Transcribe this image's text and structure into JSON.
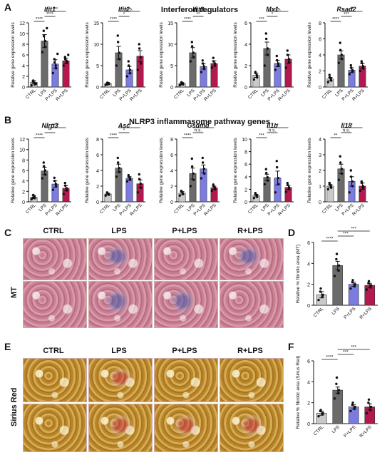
{
  "figure": {
    "panel_A": {
      "letter": "A",
      "title": "Interferon regulators",
      "ylabel": "Relative gene expression levels",
      "categories": [
        "CTRL",
        "LPS",
        "P+LPS",
        "R+LPS"
      ]
    },
    "panel_B": {
      "letter": "B",
      "title": "NLRP3 inflammasome pathway genes",
      "ylabel": "Relative gene expression levels",
      "categories": [
        "CTRL",
        "LPS",
        "P+LPS",
        "R+LPS"
      ]
    },
    "panel_C": {
      "letter": "C",
      "columns": [
        "CTRL",
        "LPS",
        "P+LPS",
        "R+LPS"
      ],
      "row_label": "MT"
    },
    "panel_D": {
      "letter": "D",
      "ylabel": "Relative % fibrotic area (MT)",
      "categories": [
        "CTRL",
        "LPS",
        "P+LPS",
        "R+LPS"
      ]
    },
    "panel_E": {
      "letter": "E",
      "columns": [
        "CTRL",
        "LPS",
        "P+LPS",
        "R+LPS"
      ],
      "row_label": "Sirius Red"
    },
    "panel_F": {
      "letter": "F",
      "ylabel": "Relative % fibrotic area (Sirius Red)",
      "categories": [
        "CTRL",
        "LPS",
        "P+LPS",
        "R+LPS"
      ]
    }
  },
  "colors": {
    "CTRL": "#c9c9c9",
    "LPS": "#6b6b6b",
    "P+LPS": "#7b7be0",
    "R+LPS": "#b5174f"
  },
  "chart_data": [
    {
      "id": "ifit1",
      "panel": "A",
      "type": "bar",
      "title": "Ifit1",
      "categories": [
        "CTRL",
        "LPS",
        "P+LPS",
        "R+LPS"
      ],
      "values": [
        0.9,
        8.6,
        4.3,
        4.9
      ],
      "errors": [
        0.3,
        1.2,
        0.8,
        0.5
      ],
      "ylim": [
        0,
        12
      ],
      "yticks": [
        0,
        2,
        4,
        6,
        8,
        10,
        12
      ],
      "points": [
        [
          0.3,
          0.5,
          0.8,
          1.2,
          1.0,
          0.6
        ],
        [
          6.5,
          7.5,
          8.6,
          9.5,
          10.5,
          11.0
        ],
        [
          2.6,
          3.5,
          4.0,
          4.6,
          5.2,
          6.2
        ],
        [
          4.0,
          4.5,
          4.9,
          5.2,
          5.6,
          6.0
        ]
      ],
      "significance": [
        {
          "a": 0,
          "b": 1,
          "label": "****",
          "level": 1
        },
        {
          "a": 1,
          "b": 2,
          "label": "****",
          "level": 2
        },
        {
          "a": 1,
          "b": 3,
          "label": "***",
          "level": 3
        }
      ]
    },
    {
      "id": "ifit2",
      "panel": "A",
      "type": "bar",
      "title": "Ifit2",
      "categories": [
        "CTRL",
        "LPS",
        "P+LPS",
        "R+LPS"
      ],
      "values": [
        0.8,
        8.0,
        4.0,
        7.2
      ],
      "errors": [
        0.2,
        1.5,
        0.8,
        1.3
      ],
      "ylim": [
        0,
        15
      ],
      "yticks": [
        0,
        5,
        10,
        15
      ],
      "points": [
        [
          0.5,
          0.7,
          0.9,
          1.0,
          0.6
        ],
        [
          5.0,
          6.5,
          8.0,
          10.5,
          12.0
        ],
        [
          2.5,
          3.2,
          4.0,
          5.0,
          6.0
        ],
        [
          4.0,
          5.5,
          7.0,
          9.0,
          10.0
        ]
      ],
      "significance": [
        {
          "a": 0,
          "b": 1,
          "label": "****",
          "level": 1
        },
        {
          "a": 1,
          "b": 2,
          "label": "*",
          "level": 2
        },
        {
          "a": 1,
          "b": 3,
          "label": "n.s.",
          "level": 3
        }
      ]
    },
    {
      "id": "ifit3",
      "panel": "A",
      "type": "bar",
      "title": "Ifit3",
      "categories": [
        "CTRL",
        "LPS",
        "P+LPS",
        "R+LPS"
      ],
      "values": [
        0.8,
        8.0,
        4.8,
        5.5
      ],
      "errors": [
        0.2,
        1.2,
        0.6,
        0.6
      ],
      "ylim": [
        0,
        15
      ],
      "yticks": [
        0,
        5,
        10,
        15
      ],
      "points": [
        [
          0.4,
          0.6,
          0.9,
          1.1,
          0.7
        ],
        [
          6.0,
          7.0,
          8.0,
          9.5,
          10.5
        ],
        [
          3.5,
          4.2,
          4.8,
          5.5,
          6.2
        ],
        [
          4.5,
          5.0,
          5.5,
          6.0,
          6.8
        ]
      ],
      "significance": [
        {
          "a": 0,
          "b": 1,
          "label": "****",
          "level": 1
        },
        {
          "a": 1,
          "b": 2,
          "label": "**",
          "level": 2
        },
        {
          "a": 1,
          "b": 3,
          "label": "*",
          "level": 3
        }
      ]
    },
    {
      "id": "mx1",
      "panel": "A",
      "type": "bar",
      "title": "Mx1",
      "categories": [
        "CTRL",
        "LPS",
        "P+LPS",
        "R+LPS"
      ],
      "values": [
        1.1,
        3.6,
        2.2,
        2.6
      ],
      "errors": [
        0.2,
        0.6,
        0.3,
        0.4
      ],
      "ylim": [
        0,
        6
      ],
      "yticks": [
        0,
        2,
        4,
        6
      ],
      "points": [
        [
          0.7,
          0.9,
          1.1,
          1.3,
          1.4
        ],
        [
          2.0,
          3.0,
          3.6,
          4.5,
          5.0
        ],
        [
          1.6,
          2.0,
          2.2,
          2.5,
          2.9
        ],
        [
          1.8,
          2.3,
          2.6,
          3.0,
          3.4
        ]
      ],
      "significance": [
        {
          "a": 0,
          "b": 1,
          "label": "***",
          "level": 1
        },
        {
          "a": 1,
          "b": 2,
          "label": "*",
          "level": 2
        },
        {
          "a": 1,
          "b": 3,
          "label": "n.s.",
          "level": 3
        }
      ]
    },
    {
      "id": "rsad2",
      "panel": "A",
      "type": "bar",
      "title": "Rsad2",
      "categories": [
        "CTRL",
        "LPS",
        "P+LPS",
        "R+LPS"
      ],
      "values": [
        1.0,
        4.0,
        2.1,
        2.6
      ],
      "errors": [
        0.2,
        0.5,
        0.3,
        0.3
      ],
      "ylim": [
        0,
        8
      ],
      "yticks": [
        0,
        2,
        4,
        6,
        8
      ],
      "points": [
        [
          0.6,
          0.8,
          1.0,
          1.2,
          1.5
        ],
        [
          3.0,
          3.5,
          4.0,
          4.6,
          5.5
        ],
        [
          1.6,
          1.9,
          2.1,
          2.4,
          2.7
        ],
        [
          2.0,
          2.3,
          2.6,
          3.0,
          3.2
        ]
      ],
      "significance": [
        {
          "a": 0,
          "b": 1,
          "label": "****",
          "level": 1
        },
        {
          "a": 1,
          "b": 2,
          "label": "***",
          "level": 2
        },
        {
          "a": 1,
          "b": 3,
          "label": "**",
          "level": 3
        }
      ]
    },
    {
      "id": "nlrp3",
      "panel": "B",
      "type": "bar",
      "title": "Nlrp3",
      "categories": [
        "CTRL",
        "LPS",
        "P+LPS",
        "R+LPS"
      ],
      "values": [
        0.9,
        5.9,
        3.4,
        2.6
      ],
      "errors": [
        0.3,
        0.7,
        0.6,
        0.5
      ],
      "ylim": [
        0,
        12
      ],
      "yticks": [
        0,
        2,
        4,
        6,
        8,
        10,
        12
      ],
      "points": [
        [
          0.5,
          0.7,
          1.0,
          1.3,
          0.8
        ],
        [
          4.5,
          5.2,
          6.0,
          6.8,
          7.5
        ],
        [
          2.3,
          3.0,
          3.4,
          4.0,
          4.6
        ],
        [
          1.5,
          2.2,
          2.6,
          3.1,
          3.6
        ]
      ],
      "significance": [
        {
          "a": 0,
          "b": 1,
          "label": "****",
          "level": 1
        },
        {
          "a": 1,
          "b": 2,
          "label": "**",
          "level": 2
        },
        {
          "a": 1,
          "b": 3,
          "label": "****",
          "level": 3
        }
      ]
    },
    {
      "id": "asc",
      "panel": "B",
      "type": "bar",
      "title": "Asc",
      "categories": [
        "CTRL",
        "LPS",
        "P+LPS",
        "R+LPS"
      ],
      "values": [
        1.0,
        4.3,
        3.0,
        2.3
      ],
      "errors": [
        0.1,
        0.5,
        0.2,
        0.5
      ],
      "ylim": [
        0,
        8
      ],
      "yticks": [
        0,
        2,
        4,
        6,
        8
      ],
      "points": [
        [
          0.8,
          0.9,
          1.0,
          1.1,
          1.2
        ],
        [
          3.2,
          3.8,
          4.3,
          5.0,
          5.6
        ],
        [
          2.6,
          2.8,
          3.0,
          3.2,
          3.4
        ],
        [
          1.2,
          1.8,
          2.3,
          2.9,
          3.5
        ]
      ],
      "significance": [
        {
          "a": 0,
          "b": 1,
          "label": "****",
          "level": 1
        },
        {
          "a": 1,
          "b": 2,
          "label": "*",
          "level": 2
        },
        {
          "a": 1,
          "b": 3,
          "label": "**",
          "level": 3
        }
      ]
    },
    {
      "id": "gsdmd",
      "panel": "B",
      "type": "bar",
      "title": "Gsdmd",
      "categories": [
        "CTRL",
        "LPS",
        "P+LPS",
        "R+LPS"
      ],
      "values": [
        1.1,
        3.6,
        4.2,
        1.8
      ],
      "errors": [
        0.2,
        0.7,
        0.5,
        0.2
      ],
      "ylim": [
        0,
        8
      ],
      "yticks": [
        0,
        2,
        4,
        6,
        8
      ],
      "points": [
        [
          0.8,
          1.0,
          1.1,
          1.3,
          1.4
        ],
        [
          2.0,
          2.8,
          3.6,
          4.5,
          5.5
        ],
        [
          3.0,
          3.6,
          4.2,
          5.0,
          5.6
        ],
        [
          1.4,
          1.6,
          1.8,
          2.0,
          2.2
        ]
      ],
      "significance": [
        {
          "a": 0,
          "b": 1,
          "label": "****",
          "level": 1
        },
        {
          "a": 1,
          "b": 2,
          "label": "n.s.",
          "level": 2
        },
        {
          "a": 1,
          "b": 3,
          "label": "**",
          "level": 3
        }
      ]
    },
    {
      "id": "il1b",
      "panel": "B",
      "type": "bar",
      "title": "Il1b",
      "categories": [
        "CTRL",
        "LPS",
        "P+LPS",
        "R+LPS"
      ],
      "values": [
        1.0,
        3.9,
        3.8,
        2.3
      ],
      "errors": [
        0.2,
        0.5,
        1.1,
        0.3
      ],
      "ylim": [
        0,
        10
      ],
      "yticks": [
        0,
        2,
        4,
        6,
        8,
        10
      ],
      "points": [
        [
          0.6,
          0.8,
          1.0,
          1.2,
          1.4
        ],
        [
          2.8,
          3.4,
          3.9,
          4.6,
          5.2
        ],
        [
          1.5,
          2.8,
          3.8,
          5.5,
          6.5
        ],
        [
          1.6,
          2.0,
          2.3,
          2.7,
          3.0
        ]
      ],
      "significance": [
        {
          "a": 0,
          "b": 1,
          "label": "***",
          "level": 1
        },
        {
          "a": 1,
          "b": 2,
          "label": "n.s.",
          "level": 2
        },
        {
          "a": 1,
          "b": 3,
          "label": "*",
          "level": 3
        }
      ]
    },
    {
      "id": "il18",
      "panel": "B",
      "type": "bar",
      "title": "Il18",
      "categories": [
        "CTRL",
        "LPS",
        "P+LPS",
        "R+LPS"
      ],
      "values": [
        1.0,
        2.1,
        1.3,
        1.0
      ],
      "errors": [
        0.1,
        0.3,
        0.3,
        0.2
      ],
      "ylim": [
        0,
        4
      ],
      "yticks": [
        0,
        1,
        2,
        3,
        4
      ],
      "points": [
        [
          0.8,
          0.9,
          1.0,
          1.1,
          1.2
        ],
        [
          1.4,
          1.8,
          2.1,
          2.5,
          2.9
        ],
        [
          0.6,
          1.0,
          1.3,
          1.6,
          2.0
        ],
        [
          0.7,
          0.9,
          1.0,
          1.2,
          1.3
        ]
      ],
      "significance": [
        {
          "a": 0,
          "b": 1,
          "label": "**",
          "level": 1
        },
        {
          "a": 1,
          "b": 2,
          "label": "n.s.",
          "level": 2
        },
        {
          "a": 1,
          "b": 3,
          "label": "*",
          "level": 3
        }
      ]
    },
    {
      "id": "mt_fibrosis",
      "panel": "D",
      "type": "bar",
      "title": "",
      "categories": [
        "CTRL",
        "LPS",
        "P+LPS",
        "R+LPS"
      ],
      "values": [
        1.0,
        3.8,
        2.0,
        1.9
      ],
      "errors": [
        0.3,
        0.4,
        0.2,
        0.2
      ],
      "ylim": [
        0,
        6
      ],
      "yticks": [
        0,
        2,
        4,
        6
      ],
      "points": [
        [
          0.5,
          0.8,
          1.0,
          1.3,
          1.6
        ],
        [
          2.8,
          3.3,
          3.8,
          4.4,
          4.9
        ],
        [
          1.6,
          1.8,
          2.0,
          2.2,
          2.4
        ],
        [
          1.5,
          1.7,
          1.9,
          2.1,
          2.3
        ]
      ],
      "significance": [
        {
          "a": 0,
          "b": 1,
          "label": "****",
          "level": 1
        },
        {
          "a": 1,
          "b": 2,
          "label": "***",
          "level": 2
        },
        {
          "a": 1,
          "b": 3,
          "label": "***",
          "level": 3
        }
      ]
    },
    {
      "id": "sr_fibrosis",
      "panel": "F",
      "type": "bar",
      "title": "",
      "categories": [
        "CTRL",
        "LPS",
        "P+LPS",
        "R+LPS"
      ],
      "values": [
        1.0,
        3.2,
        1.6,
        1.6
      ],
      "errors": [
        0.2,
        0.3,
        0.2,
        0.3
      ],
      "ylim": [
        0,
        6
      ],
      "yticks": [
        0,
        2,
        4,
        6
      ],
      "points": [
        [
          0.7,
          0.9,
          1.0,
          1.2,
          1.3
        ],
        [
          2.4,
          2.9,
          3.2,
          3.8,
          4.4
        ],
        [
          1.2,
          1.4,
          1.6,
          1.8,
          2.0
        ],
        [
          1.0,
          1.3,
          1.6,
          2.0,
          2.3
        ]
      ],
      "significance": [
        {
          "a": 0,
          "b": 1,
          "label": "****",
          "level": 1
        },
        {
          "a": 1,
          "b": 2,
          "label": "***",
          "level": 2
        },
        {
          "a": 1,
          "b": 3,
          "label": "***",
          "level": 3
        }
      ]
    }
  ]
}
